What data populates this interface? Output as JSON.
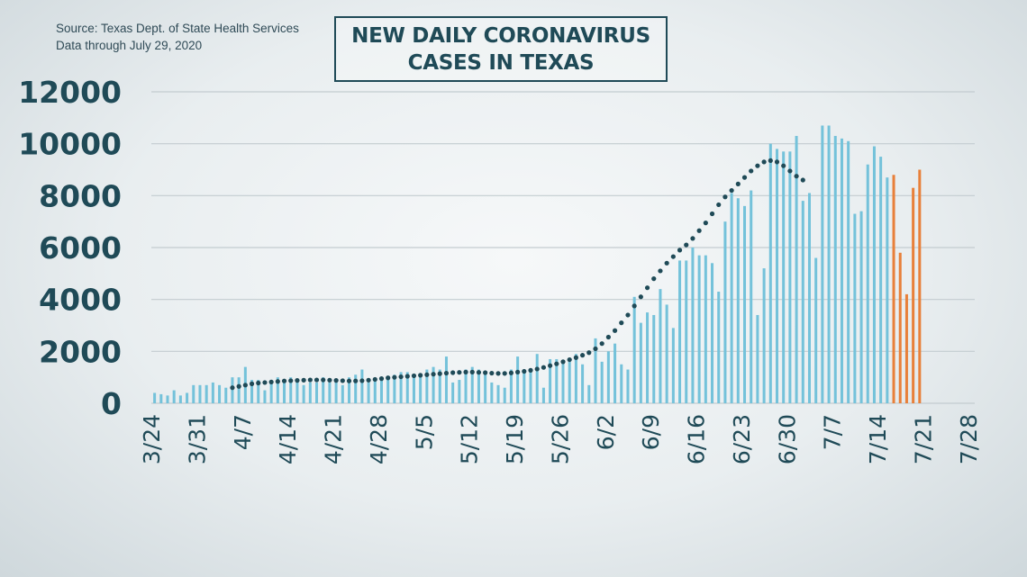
{
  "source_lines": [
    "Source: Texas Dept. of State Health Services",
    "Data through  July 29, 2020"
  ],
  "title_lines": [
    "NEW DAILY CORONAVIRUS",
    "CASES IN TEXAS"
  ],
  "colors": {
    "bar": "#74c2da",
    "bar_highlight": "#e8803a",
    "average_dots": "#1f4a57",
    "axis_text": "#1f4a57",
    "grid": "#c3ccd0"
  },
  "chart_data": {
    "type": "bar",
    "title": "NEW DAILY CORONAVIRUS CASES IN TEXAS",
    "xlabel": "",
    "ylabel": "",
    "ylim": [
      0,
      12000
    ],
    "yticks": [
      0,
      2000,
      4000,
      6000,
      8000,
      10000,
      12000
    ],
    "grid": true,
    "x_start": "3/24",
    "x_end": "7/29",
    "xtick_labels": [
      "3/24",
      "3/31",
      "4/7",
      "4/14",
      "4/21",
      "4/28",
      "5/5",
      "5/12",
      "5/19",
      "5/26",
      "6/2",
      "6/9",
      "6/16",
      "6/23",
      "6/30",
      "7/7",
      "7/14",
      "7/21",
      "7/28"
    ],
    "highlight_from": "7/16",
    "series": [
      {
        "type": "bar",
        "values": [
          400,
          350,
          300,
          500,
          300,
          400,
          700,
          700,
          700,
          800,
          700,
          600,
          1000,
          1000,
          1400,
          900,
          900,
          500,
          800,
          1000,
          900,
          1000,
          800,
          700,
          800,
          800,
          1000,
          800,
          900,
          700,
          1000,
          1100,
          1300,
          800,
          900,
          1000,
          1000,
          1100,
          1200,
          1200,
          1000,
          1100,
          1300,
          1400,
          1300,
          1800,
          800,
          900,
          1300,
          1400,
          1300,
          1100,
          800,
          700,
          600,
          1300,
          1800,
          1200,
          1200,
          1900,
          600,
          1700,
          1700,
          1600,
          1600,
          1900,
          1500,
          700,
          2500,
          1600,
          2000,
          2300,
          1500,
          1300,
          4100,
          3100,
          3500,
          3400,
          4400,
          3800,
          2900,
          5500,
          5500,
          6000,
          5700,
          5700,
          5400,
          4300,
          7000,
          8100,
          7900,
          7600,
          8200,
          3400,
          5200,
          10000,
          9800,
          9700,
          9700,
          10300,
          7800,
          8100,
          5600,
          10700,
          10700,
          10300,
          10200,
          10100,
          7300,
          7400,
          9200,
          9900,
          9500,
          8700,
          8800,
          5800,
          4200,
          8300,
          9000
        ]
      },
      {
        "type": "line",
        "style": "dotted",
        "start": "4/5",
        "values": [
          600,
          650,
          700,
          750,
          780,
          800,
          820,
          840,
          860,
          870,
          880,
          890,
          900,
          900,
          900,
          890,
          880,
          870,
          860,
          860,
          870,
          890,
          920,
          950,
          980,
          1000,
          1020,
          1040,
          1060,
          1080,
          1100,
          1120,
          1140,
          1160,
          1180,
          1190,
          1200,
          1200,
          1190,
          1180,
          1160,
          1150,
          1150,
          1170,
          1200,
          1230,
          1270,
          1320,
          1380,
          1450,
          1520,
          1600,
          1680,
          1760,
          1850,
          1950,
          2100,
          2300,
          2550,
          2800,
          3100,
          3400,
          3750,
          4100,
          4450,
          4800,
          5100,
          5400,
          5650,
          5900,
          6100,
          6350,
          6650,
          6950,
          7300,
          7650,
          7950,
          8200,
          8450,
          8700,
          8950,
          9150,
          9300,
          9350,
          9300,
          9150,
          8950,
          8750,
          8600
        ]
      }
    ]
  }
}
